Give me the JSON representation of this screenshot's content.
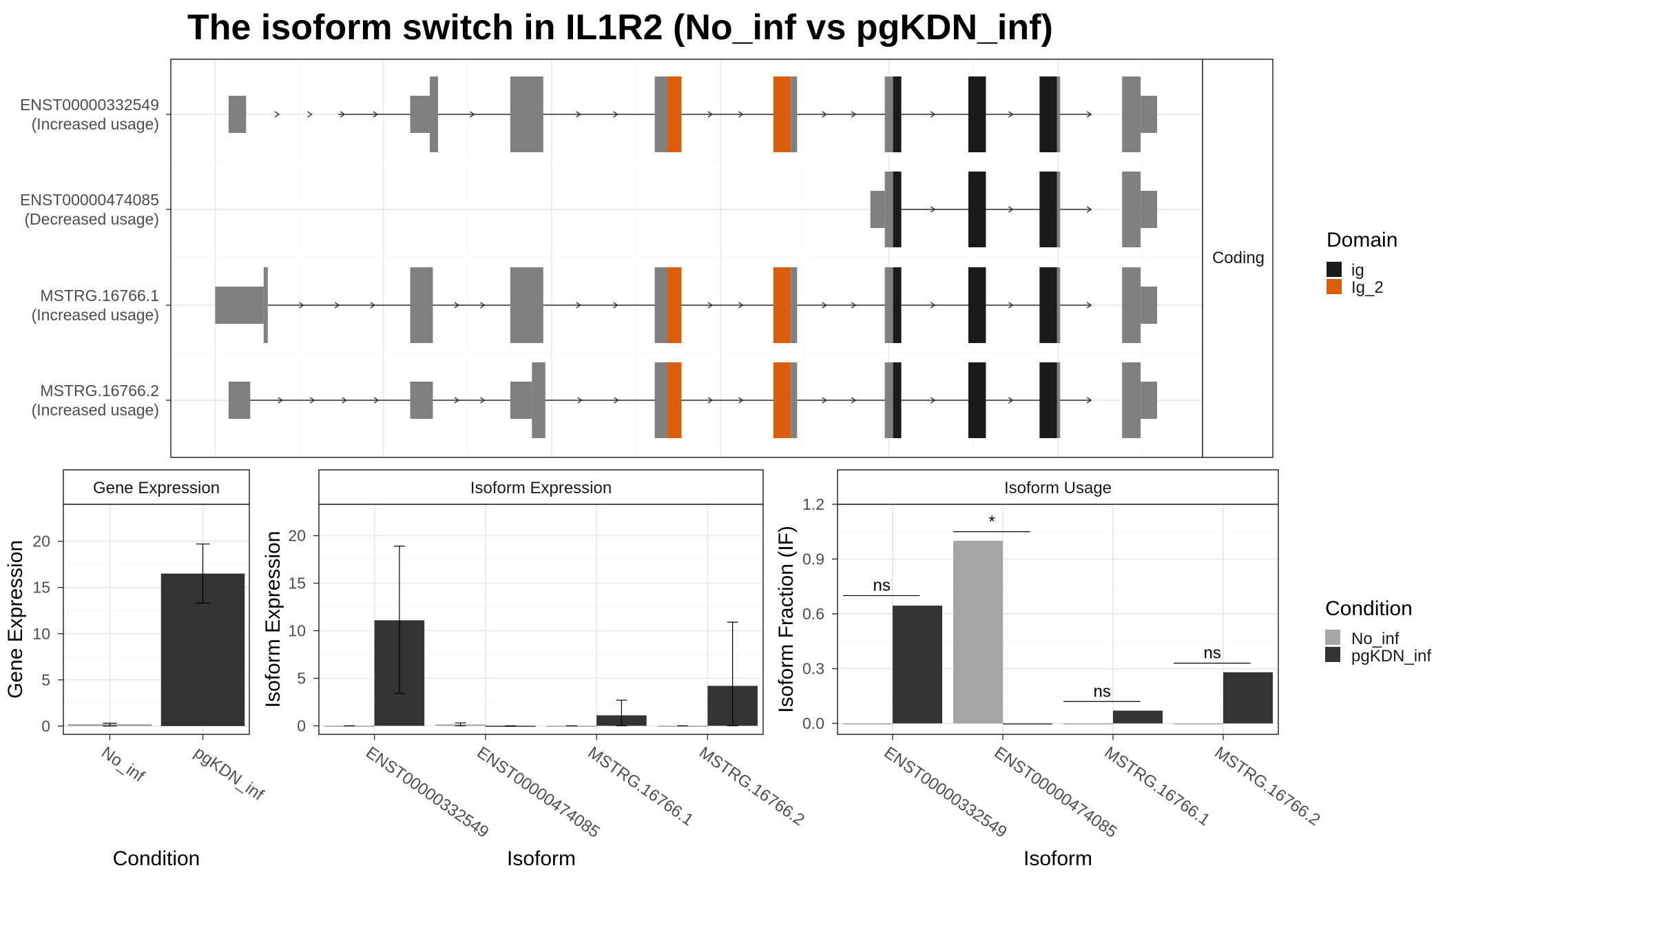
{
  "title": "The isoform switch in IL1R2 (No_inf vs pgKDN_inf)",
  "colors": {
    "utr": "#808080",
    "ig": "#1a1a1a",
    "ig_2": "#d95f0e",
    "no_inf": "#a6a6a6",
    "pgkdn_inf": "#333333",
    "grid": "#ebebeb",
    "strip_bg": "#ffffff"
  },
  "transcripts": {
    "strip_label": "Coding",
    "legend_title": "Domain",
    "legend_items": [
      {
        "label": "ig",
        "color": "#1a1a1a"
      },
      {
        "label": "Ig_2",
        "color": "#d95f0e"
      }
    ],
    "rows": [
      {
        "name": "ENST00000332549",
        "status": "(Increased usage)",
        "line": [
          0.162,
          0.891
        ],
        "exons": [
          {
            "s": 0.056,
            "e": 0.073,
            "h": "utr"
          },
          {
            "s": 0.232,
            "e": 0.251,
            "h": "utr"
          },
          {
            "s": 0.251,
            "e": 0.259,
            "h": "cds"
          },
          {
            "s": 0.329,
            "e": 0.361,
            "h": "cds"
          },
          {
            "s": 0.469,
            "e": 0.481,
            "h": "cds"
          },
          {
            "s": 0.481,
            "e": 0.495,
            "h": "cds",
            "d": "ig_2"
          },
          {
            "s": 0.584,
            "e": 0.601,
            "h": "cds",
            "d": "ig_2"
          },
          {
            "s": 0.601,
            "e": 0.607,
            "h": "cds"
          },
          {
            "s": 0.692,
            "e": 0.7,
            "h": "cds"
          },
          {
            "s": 0.7,
            "e": 0.708,
            "h": "cds",
            "d": "ig"
          },
          {
            "s": 0.773,
            "e": 0.79,
            "h": "cds",
            "d": "ig"
          },
          {
            "s": 0.842,
            "e": 0.859,
            "h": "cds",
            "d": "ig"
          },
          {
            "s": 0.859,
            "e": 0.862,
            "h": "cds"
          },
          {
            "s": 0.922,
            "e": 0.94,
            "h": "cds"
          },
          {
            "s": 0.94,
            "e": 0.956,
            "h": "utr"
          }
        ],
        "tail": [
          0.259,
          0.329
        ]
      },
      {
        "name": "ENST00000474085",
        "status": "(Decreased usage)",
        "line": [
          0.685,
          0.891
        ],
        "exons": [
          {
            "s": 0.678,
            "e": 0.692,
            "h": "utr"
          },
          {
            "s": 0.692,
            "e": 0.7,
            "h": "cds"
          },
          {
            "s": 0.7,
            "e": 0.708,
            "h": "cds",
            "d": "ig"
          },
          {
            "s": 0.773,
            "e": 0.79,
            "h": "cds",
            "d": "ig"
          },
          {
            "s": 0.842,
            "e": 0.859,
            "h": "cds",
            "d": "ig"
          },
          {
            "s": 0.859,
            "e": 0.862,
            "h": "cds"
          },
          {
            "s": 0.922,
            "e": 0.94,
            "h": "cds"
          },
          {
            "s": 0.94,
            "e": 0.956,
            "h": "utr"
          }
        ]
      },
      {
        "name": "MSTRG.16766.1",
        "status": "(Increased usage)",
        "line": [
          0.094,
          0.891
        ],
        "exons": [
          {
            "s": 0.043,
            "e": 0.09,
            "h": "utr"
          },
          {
            "s": 0.09,
            "e": 0.094,
            "h": "cds"
          },
          {
            "s": 0.232,
            "e": 0.254,
            "h": "cds"
          },
          {
            "s": 0.329,
            "e": 0.361,
            "h": "cds"
          },
          {
            "s": 0.469,
            "e": 0.481,
            "h": "cds"
          },
          {
            "s": 0.481,
            "e": 0.495,
            "h": "cds",
            "d": "ig_2"
          },
          {
            "s": 0.584,
            "e": 0.601,
            "h": "cds",
            "d": "ig_2"
          },
          {
            "s": 0.601,
            "e": 0.607,
            "h": "cds"
          },
          {
            "s": 0.692,
            "e": 0.7,
            "h": "cds"
          },
          {
            "s": 0.7,
            "e": 0.708,
            "h": "cds",
            "d": "ig"
          },
          {
            "s": 0.773,
            "e": 0.79,
            "h": "cds",
            "d": "ig"
          },
          {
            "s": 0.842,
            "e": 0.859,
            "h": "cds",
            "d": "ig"
          },
          {
            "s": 0.859,
            "e": 0.862,
            "h": "cds"
          },
          {
            "s": 0.922,
            "e": 0.94,
            "h": "cds"
          },
          {
            "s": 0.94,
            "e": 0.956,
            "h": "utr"
          }
        ]
      },
      {
        "name": "MSTRG.16766.2",
        "status": "(Increased usage)",
        "line": [
          0.072,
          0.891
        ],
        "exons": [
          {
            "s": 0.056,
            "e": 0.077,
            "h": "utr"
          },
          {
            "s": 0.232,
            "e": 0.254,
            "h": "utr"
          },
          {
            "s": 0.329,
            "e": 0.35,
            "h": "utr"
          },
          {
            "s": 0.35,
            "e": 0.363,
            "h": "cds"
          },
          {
            "s": 0.469,
            "e": 0.481,
            "h": "cds"
          },
          {
            "s": 0.481,
            "e": 0.495,
            "h": "cds",
            "d": "ig_2"
          },
          {
            "s": 0.584,
            "e": 0.601,
            "h": "cds",
            "d": "ig_2"
          },
          {
            "s": 0.601,
            "e": 0.607,
            "h": "cds"
          },
          {
            "s": 0.692,
            "e": 0.7,
            "h": "cds"
          },
          {
            "s": 0.7,
            "e": 0.708,
            "h": "cds",
            "d": "ig"
          },
          {
            "s": 0.773,
            "e": 0.79,
            "h": "cds",
            "d": "ig"
          },
          {
            "s": 0.842,
            "e": 0.859,
            "h": "cds",
            "d": "ig"
          },
          {
            "s": 0.859,
            "e": 0.862,
            "h": "cds"
          },
          {
            "s": 0.922,
            "e": 0.94,
            "h": "cds"
          },
          {
            "s": 0.94,
            "e": 0.956,
            "h": "utr"
          }
        ]
      }
    ]
  },
  "condition_legend": {
    "title": "Condition",
    "items": [
      {
        "label": "No_inf",
        "color": "#a6a6a6"
      },
      {
        "label": "pgKDN_inf",
        "color": "#333333"
      }
    ]
  },
  "chart_data": [
    {
      "type": "bar",
      "title": "Gene Expression",
      "xlabel": "Condition",
      "ylabel": "Gene Expression",
      "categories": [
        "No_inf",
        "pgKDN_inf"
      ],
      "values": [
        0.2,
        16.5
      ],
      "errors": [
        [
          0.0,
          0.3
        ],
        [
          13.3,
          19.7
        ]
      ],
      "ylim": [
        -0.9,
        24
      ],
      "yticks": [
        0,
        5,
        10,
        15,
        20
      ]
    },
    {
      "type": "bar",
      "title": "Isoform Expression",
      "xlabel": "Isoform",
      "ylabel": "Isoform Expression",
      "categories": [
        "ENST00000332549",
        "ENST00000474085",
        "MSTRG.16766.1",
        "MSTRG.16766.2"
      ],
      "series": [
        {
          "name": "No_inf",
          "values": [
            0.0,
            0.15,
            0.0,
            0.0
          ],
          "errors": [
            null,
            [
              0.0,
              0.3
            ],
            null,
            null
          ]
        },
        {
          "name": "pgKDN_inf",
          "values": [
            11.1,
            0.0,
            1.1,
            4.2
          ],
          "errors": [
            [
              3.4,
              18.9
            ],
            null,
            [
              0.0,
              2.7
            ],
            [
              0.0,
              10.9
            ]
          ]
        }
      ],
      "ylim": [
        -0.9,
        23.3
      ],
      "yticks": [
        0,
        5,
        10,
        15,
        20
      ]
    },
    {
      "type": "bar",
      "title": "Isoform Usage",
      "xlabel": "Isoform",
      "ylabel": "Isoform Fraction (IF)",
      "categories": [
        "ENST00000332549",
        "ENST00000474085",
        "MSTRG.16766.1",
        "MSTRG.16766.2"
      ],
      "series": [
        {
          "name": "No_inf",
          "values": [
            0.0,
            1.0,
            0.0,
            0.0
          ]
        },
        {
          "name": "pgKDN_inf",
          "values": [
            0.645,
            0.0,
            0.07,
            0.28
          ]
        }
      ],
      "significance": [
        {
          "label": "ns",
          "y": 0.7
        },
        {
          "label": "*",
          "y": 1.05
        },
        {
          "label": "ns",
          "y": 0.12
        },
        {
          "label": "ns",
          "y": 0.33
        }
      ],
      "ylim": [
        -0.06,
        1.2
      ],
      "yticks": [
        "0.0",
        "0.3",
        "0.6",
        "0.9",
        "1.2"
      ]
    }
  ]
}
